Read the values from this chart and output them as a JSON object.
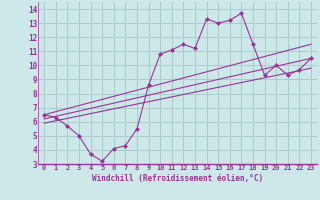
{
  "background_color": "#cce8e8",
  "grid_color": "#aacccc",
  "line_color": "#993399",
  "marker_color": "#993399",
  "xlabel": "Windchill (Refroidissement éolien,°C)",
  "xlim": [
    -0.5,
    23.5
  ],
  "ylim": [
    3,
    14.5
  ],
  "yticks": [
    3,
    4,
    5,
    6,
    7,
    8,
    9,
    10,
    11,
    12,
    13,
    14
  ],
  "xticks": [
    0,
    1,
    2,
    3,
    4,
    5,
    6,
    7,
    8,
    9,
    10,
    11,
    12,
    13,
    14,
    15,
    16,
    17,
    18,
    19,
    20,
    21,
    22,
    23
  ],
  "line1_x": [
    0,
    1,
    2,
    3,
    4,
    5,
    6,
    7,
    8,
    9,
    10,
    11,
    12,
    13,
    14,
    15,
    16,
    17,
    18,
    19,
    20,
    21,
    22,
    23
  ],
  "line1_y": [
    6.5,
    6.3,
    5.7,
    5.0,
    3.7,
    3.2,
    4.1,
    4.3,
    5.5,
    8.6,
    10.8,
    11.1,
    11.5,
    11.2,
    13.3,
    13.0,
    13.2,
    13.7,
    11.5,
    9.3,
    10.0,
    9.3,
    9.7,
    10.5
  ],
  "line2_x": [
    0,
    23
  ],
  "line2_y": [
    6.5,
    11.5
  ],
  "line3_x": [
    0,
    23
  ],
  "line3_y": [
    6.2,
    10.5
  ],
  "line4_x": [
    0,
    23
  ],
  "line4_y": [
    5.9,
    9.8
  ]
}
